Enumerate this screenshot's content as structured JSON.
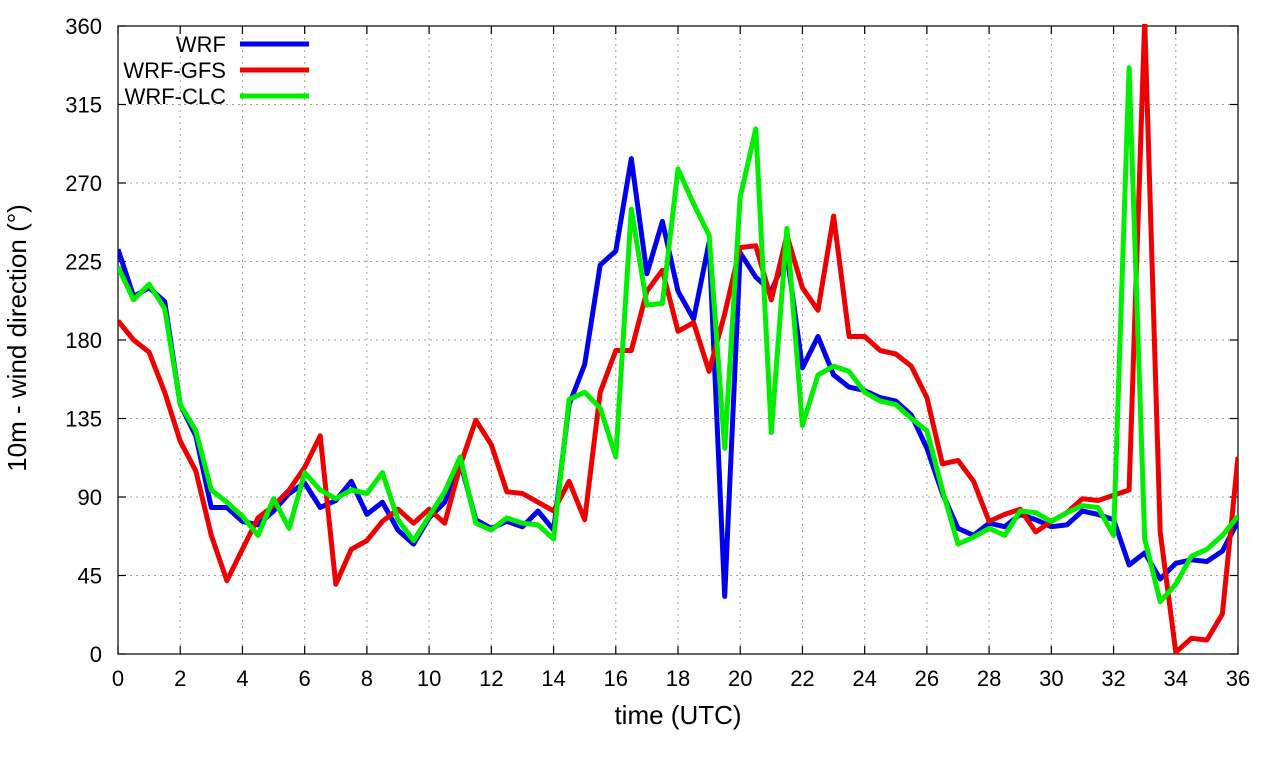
{
  "chart_data": {
    "type": "line",
    "xlabel": "time (UTC)",
    "ylabel": "10m - wind direction (°)",
    "xlim": [
      0,
      36
    ],
    "ylim": [
      0,
      360
    ],
    "xticks": [
      0,
      2,
      4,
      6,
      8,
      10,
      12,
      14,
      16,
      18,
      20,
      22,
      24,
      26,
      28,
      30,
      32,
      34,
      36
    ],
    "yticks": [
      0,
      45,
      90,
      135,
      180,
      225,
      270,
      315,
      360
    ],
    "grid": true,
    "legend_position": "top-left",
    "x": [
      0,
      0.5,
      1,
      1.5,
      2,
      2.5,
      3,
      3.5,
      4,
      4.5,
      5,
      5.5,
      6,
      6.5,
      7,
      7.5,
      8,
      8.5,
      9,
      9.5,
      10,
      10.5,
      11,
      11.5,
      12,
      12.5,
      13,
      13.5,
      14,
      14.5,
      15,
      15.5,
      16,
      16.5,
      17,
      17.5,
      18,
      18.5,
      19,
      19.5,
      20,
      20.5,
      21,
      21.5,
      22,
      22.5,
      23,
      23.5,
      24,
      24.5,
      25,
      25.5,
      26,
      26.5,
      27,
      27.5,
      28,
      28.5,
      29,
      29.5,
      30,
      30.5,
      31,
      31.5,
      32,
      32.5,
      33,
      33.5,
      34,
      34.5,
      35,
      35.5,
      36
    ],
    "series": [
      {
        "name": "WRF",
        "color": "#0000ee",
        "values": [
          232,
          205,
          210,
          202,
          143,
          125,
          84,
          84,
          76,
          74,
          82,
          92,
          98,
          84,
          88,
          99,
          80,
          87,
          71,
          63,
          78,
          87,
          110,
          77,
          72,
          76,
          73,
          82,
          71,
          143,
          166,
          223,
          231,
          284,
          218,
          248,
          208,
          192,
          236,
          33,
          230,
          216,
          208,
          229,
          164,
          182,
          160,
          153,
          151,
          147,
          145,
          137,
          118,
          92,
          72,
          68,
          75,
          73,
          80,
          77,
          73,
          74,
          82,
          80,
          77,
          51,
          58,
          43,
          52,
          54,
          53,
          59,
          76
        ]
      },
      {
        "name": "WRF-GFS",
        "color": "#ee0000",
        "values": [
          191,
          180,
          173,
          150,
          122,
          105,
          68,
          42,
          60,
          78,
          85,
          94,
          107,
          125,
          40,
          60,
          65,
          76,
          83,
          75,
          83,
          75,
          108,
          134,
          120,
          93,
          92,
          87,
          82,
          99,
          77,
          150,
          174,
          174,
          208,
          220,
          185,
          190,
          162,
          195,
          233,
          234,
          203,
          240,
          210,
          197,
          251,
          182,
          182,
          174,
          172,
          165,
          147,
          109,
          111,
          99,
          76,
          80,
          83,
          70,
          76,
          81,
          89,
          88,
          91,
          94,
          363,
          70,
          1,
          9,
          8,
          23,
          113
        ]
      },
      {
        "name": "WRF-CLC",
        "color": "#00ee00",
        "values": [
          222,
          203,
          212,
          198,
          143,
          128,
          94,
          87,
          79,
          68,
          89,
          72,
          104,
          94,
          89,
          94,
          92,
          104,
          77,
          65,
          79,
          93,
          113,
          75,
          71,
          78,
          75,
          74,
          66,
          146,
          150,
          141,
          113,
          255,
          200,
          201,
          278,
          258,
          240,
          118,
          262,
          301,
          127,
          244,
          131,
          160,
          165,
          162,
          150,
          145,
          143,
          135,
          128,
          94,
          63,
          67,
          72,
          68,
          82,
          81,
          76,
          81,
          85,
          84,
          68,
          336,
          66,
          30,
          40,
          56,
          60,
          68,
          79
        ]
      }
    ]
  }
}
